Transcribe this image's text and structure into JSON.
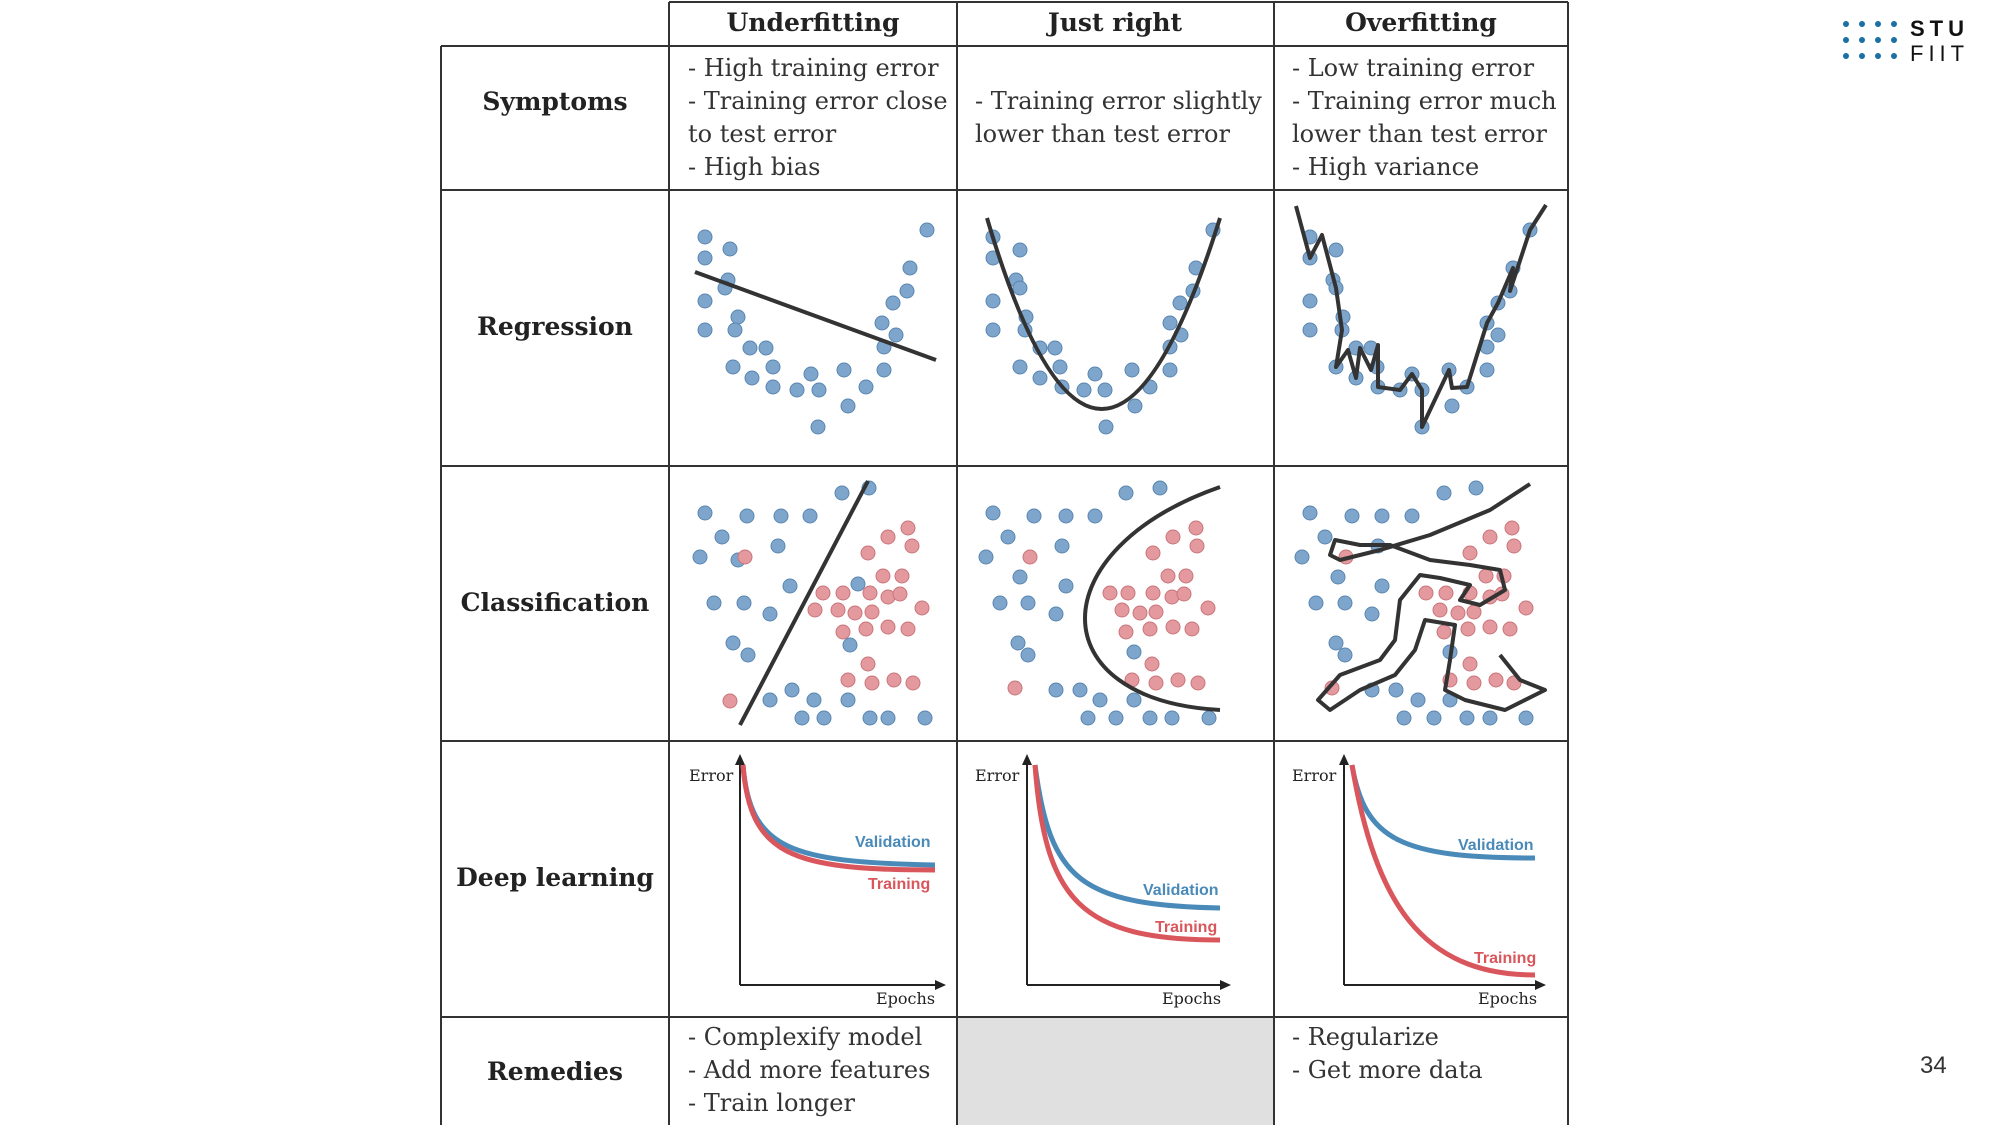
{
  "columns": [
    {
      "key": "under",
      "label": "Underfitting"
    },
    {
      "key": "right",
      "label": "Just right"
    },
    {
      "key": "over",
      "label": "Overfitting"
    }
  ],
  "rows": [
    "Symptoms",
    "Regression",
    "Classification",
    "Deep learning",
    "Remedies"
  ],
  "symptoms": {
    "under": [
      "- High training error",
      "- Training error close",
      "to test error",
      "- High bias"
    ],
    "right": [
      "- Training error slightly",
      "lower than test error"
    ],
    "over": [
      "- Low training error",
      "- Training error much",
      "lower than test error",
      "- High variance"
    ]
  },
  "remedies": {
    "under": [
      "- Complexify model",
      "- Add more features",
      "- Train longer"
    ],
    "right": [],
    "over": [
      "- Regularize",
      "- Get more data"
    ]
  },
  "deep_learning": {
    "axis_y": "Error",
    "axis_x": "Epochs",
    "validation_label": "Validation",
    "training_label": "Training"
  },
  "colors": {
    "blue_dot": "#7ea6cc",
    "red_dot": "#e3999d",
    "validation": "#4a8ab8",
    "training": "#d9575c",
    "grid_line": "#333333",
    "disabled_cell": "#e0e0e0",
    "logo": "#1b6fa8"
  },
  "logo": {
    "line1": "STU",
    "line2": "FIIT"
  },
  "page_number": "34"
}
